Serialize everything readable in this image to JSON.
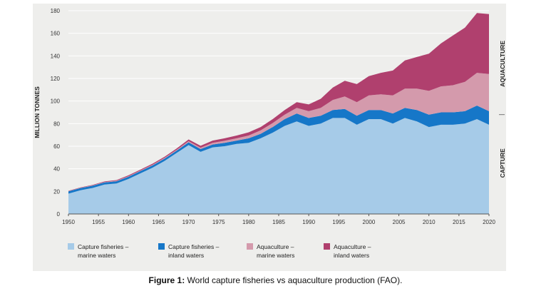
{
  "caption": {
    "prefix": "Figure 1:",
    "text": " World capture fisheries vs aquaculture production (FAO)."
  },
  "chart_data": {
    "type": "area",
    "stacked": true,
    "ylabel": "MILLION TONNES",
    "xlabel": "",
    "xlim": [
      1950,
      2020
    ],
    "ylim": [
      0,
      180
    ],
    "x_ticks": [
      1950,
      1955,
      1960,
      1965,
      1970,
      1975,
      1980,
      1985,
      1990,
      1995,
      2000,
      2005,
      2010,
      2015,
      2020
    ],
    "y_ticks": [
      0,
      20,
      40,
      60,
      80,
      100,
      120,
      140,
      160,
      180
    ],
    "grid": "horizontal",
    "side_labels": [
      "AQUACULTURE",
      "CAPTURE"
    ],
    "legend_position": "bottom",
    "x": [
      1950,
      1952,
      1954,
      1956,
      1958,
      1960,
      1962,
      1964,
      1966,
      1968,
      1970,
      1972,
      1974,
      1976,
      1978,
      1980,
      1982,
      1984,
      1986,
      1988,
      1990,
      1992,
      1994,
      1996,
      1998,
      2000,
      2002,
      2004,
      2006,
      2008,
      2010,
      2012,
      2014,
      2016,
      2018,
      2020
    ],
    "series": [
      {
        "name": "Capture fisheries – marine waters",
        "color": "#a6cbe8",
        "values": [
          18,
          21,
          23,
          26,
          27,
          31,
          36,
          41,
          47,
          54,
          61,
          55,
          59,
          60,
          62,
          63,
          67,
          72,
          78,
          82,
          78,
          80,
          85,
          85,
          79,
          84,
          84,
          80,
          85,
          82,
          77,
          79,
          79,
          80,
          84,
          79
        ]
      },
      {
        "name": "Capture fisheries – inland waters",
        "color": "#1677c8",
        "values": [
          2,
          2,
          2,
          2,
          2,
          2,
          2,
          2,
          2,
          2,
          2.5,
          2.5,
          2.5,
          3,
          3,
          4,
          4,
          5,
          6,
          7,
          7,
          7,
          7,
          8,
          8,
          8,
          8,
          9,
          9,
          10,
          11,
          11,
          11,
          11,
          12,
          12
        ]
      },
      {
        "name": "Aquaculture – marine waters",
        "color": "#d49aac",
        "values": [
          0.2,
          0.2,
          0.3,
          0.3,
          0.4,
          0.5,
          0.5,
          0.6,
          0.7,
          0.8,
          1,
          1.2,
          1.5,
          1.8,
          2,
          2.5,
          3,
          3.5,
          4,
          5,
          6,
          7,
          9,
          11,
          12,
          13,
          14,
          16,
          17,
          19,
          21,
          23,
          24,
          26,
          29,
          33
        ]
      },
      {
        "name": "Aquaculture – inland waters",
        "color": "#b0406e",
        "values": [
          0.3,
          0.3,
          0.4,
          0.5,
          0.6,
          0.7,
          0.8,
          0.9,
          1,
          1.1,
          1.5,
          1.7,
          2,
          2.2,
          2.5,
          2.8,
          3,
          3.5,
          4,
          5,
          6,
          8,
          11,
          14,
          16,
          17,
          19,
          22,
          25,
          28,
          33,
          38,
          44,
          48,
          53,
          53
        ]
      }
    ]
  }
}
